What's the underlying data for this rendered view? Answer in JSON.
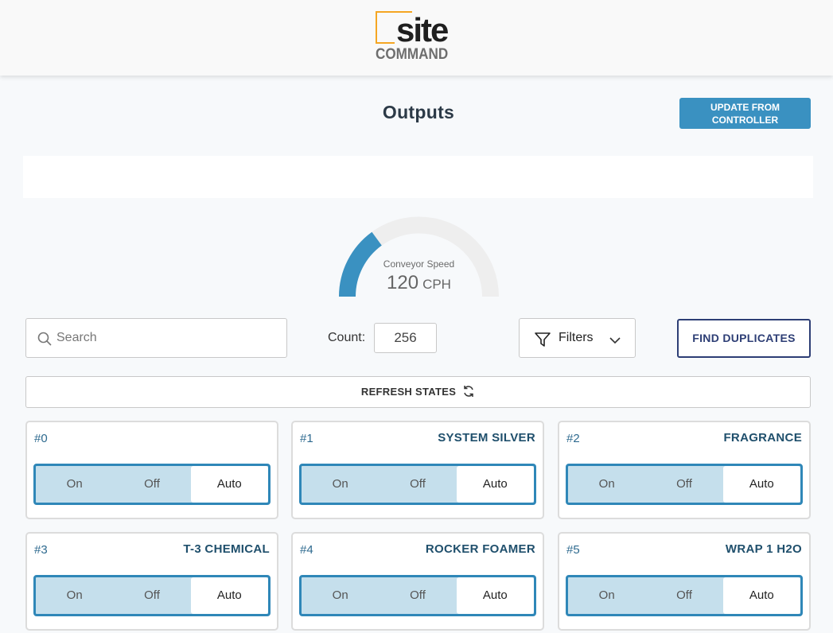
{
  "brand": {
    "logo_top": "site",
    "logo_bottom": "COMMAND",
    "accent_color": "#f5a623"
  },
  "page": {
    "title": "Outputs",
    "update_button_label": "UPDATE FROM CONTROLLER"
  },
  "gauge": {
    "label": "Conveyor Speed",
    "value": "120",
    "unit": "CPH",
    "fill_fraction": 0.3,
    "fill_color": "#3a91c1",
    "track_color": "#eeeeee"
  },
  "toolbar": {
    "search_placeholder": "Search",
    "search_icon": "search-icon",
    "count_label": "Count:",
    "count_value": "256",
    "filters_label": "Filters",
    "find_duplicates_label": "FIND DUPLICATES",
    "refresh_label": "REFRESH STATES",
    "refresh_icon": "refresh-icon"
  },
  "outputs": [
    {
      "num": "#0",
      "name": "",
      "options": [
        "On",
        "Off",
        "Auto"
      ],
      "selected": "Auto"
    },
    {
      "num": "#1",
      "name": "SYSTEM SILVER",
      "options": [
        "On",
        "Off",
        "Auto"
      ],
      "selected": "Auto"
    },
    {
      "num": "#2",
      "name": "FRAGRANCE",
      "options": [
        "On",
        "Off",
        "Auto"
      ],
      "selected": "Auto"
    },
    {
      "num": "#3",
      "name": "T-3 CHEMICAL",
      "options": [
        "On",
        "Off",
        "Auto"
      ],
      "selected": "Auto"
    },
    {
      "num": "#4",
      "name": "ROCKER FOAMER",
      "options": [
        "On",
        "Off",
        "Auto"
      ],
      "selected": "Auto"
    },
    {
      "num": "#5",
      "name": "WRAP 1 H2O",
      "options": [
        "On",
        "Off",
        "Auto"
      ],
      "selected": "Auto"
    }
  ]
}
